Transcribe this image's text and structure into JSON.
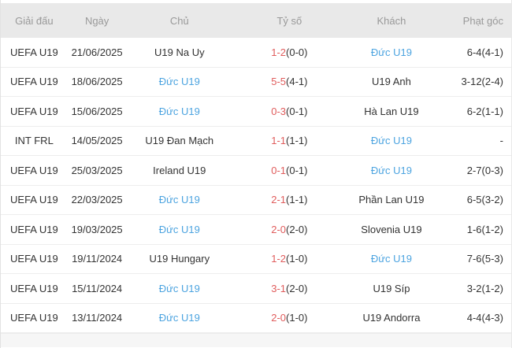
{
  "table": {
    "headers": [
      "Giải đấu",
      "Ngày",
      "Chủ",
      "Tỷ số",
      "Khách",
      "Phạt góc"
    ],
    "header_keys": [
      "tournament",
      "date",
      "home",
      "score",
      "away",
      "corners"
    ],
    "rows": [
      {
        "tournament": "UEFA U19",
        "date": "21/06/2025",
        "home": "U19 Na Uy",
        "home_highlight": false,
        "score": "1-2",
        "half": "(0-0)",
        "away": "Đức U19",
        "away_highlight": true,
        "corners": "6-4(4-1)"
      },
      {
        "tournament": "UEFA U19",
        "date": "18/06/2025",
        "home": "Đức U19",
        "home_highlight": true,
        "score": "5-5",
        "half": "(4-1)",
        "away": "U19 Anh",
        "away_highlight": false,
        "corners": "3-12(2-4)"
      },
      {
        "tournament": "UEFA U19",
        "date": "15/06/2025",
        "home": "Đức U19",
        "home_highlight": true,
        "score": "0-3",
        "half": "(0-1)",
        "away": "Hà Lan U19",
        "away_highlight": false,
        "corners": "6-2(1-1)"
      },
      {
        "tournament": "INT FRL",
        "date": "14/05/2025",
        "home": "U19 Đan Mạch",
        "home_highlight": false,
        "score": "1-1",
        "half": "(1-1)",
        "away": "Đức U19",
        "away_highlight": true,
        "corners": "-"
      },
      {
        "tournament": "UEFA U19",
        "date": "25/03/2025",
        "home": "Ireland U19",
        "home_highlight": false,
        "score": "0-1",
        "half": "(0-1)",
        "away": "Đức U19",
        "away_highlight": true,
        "corners": "2-7(0-3)"
      },
      {
        "tournament": "UEFA U19",
        "date": "22/03/2025",
        "home": "Đức U19",
        "home_highlight": true,
        "score": "2-1",
        "half": "(1-1)",
        "away": "Phần Lan U19",
        "away_highlight": false,
        "corners": "6-5(3-2)"
      },
      {
        "tournament": "UEFA U19",
        "date": "19/03/2025",
        "home": "Đức U19",
        "home_highlight": true,
        "score": "2-0",
        "half": "(2-0)",
        "away": "Slovenia U19",
        "away_highlight": false,
        "corners": "1-6(1-2)"
      },
      {
        "tournament": "UEFA U19",
        "date": "19/11/2024",
        "home": "U19 Hungary",
        "home_highlight": false,
        "score": "1-2",
        "half": "(1-0)",
        "away": "Đức U19",
        "away_highlight": true,
        "corners": "7-6(5-3)"
      },
      {
        "tournament": "UEFA U19",
        "date": "15/11/2024",
        "home": "Đức U19",
        "home_highlight": true,
        "score": "3-1",
        "half": "(2-0)",
        "away": "U19 Síp",
        "away_highlight": false,
        "corners": "3-2(1-2)"
      },
      {
        "tournament": "UEFA U19",
        "date": "13/11/2024",
        "home": "Đức U19",
        "home_highlight": true,
        "score": "2-0",
        "half": "(1-0)",
        "away": "U19 Andorra",
        "away_highlight": false,
        "corners": "4-4(4-3)"
      }
    ]
  },
  "colors": {
    "team_highlight": "#4da4e0",
    "score_red": "#e05c5c",
    "header_bg": "#e9e9e9",
    "header_text": "#999999",
    "body_text": "#333333"
  }
}
